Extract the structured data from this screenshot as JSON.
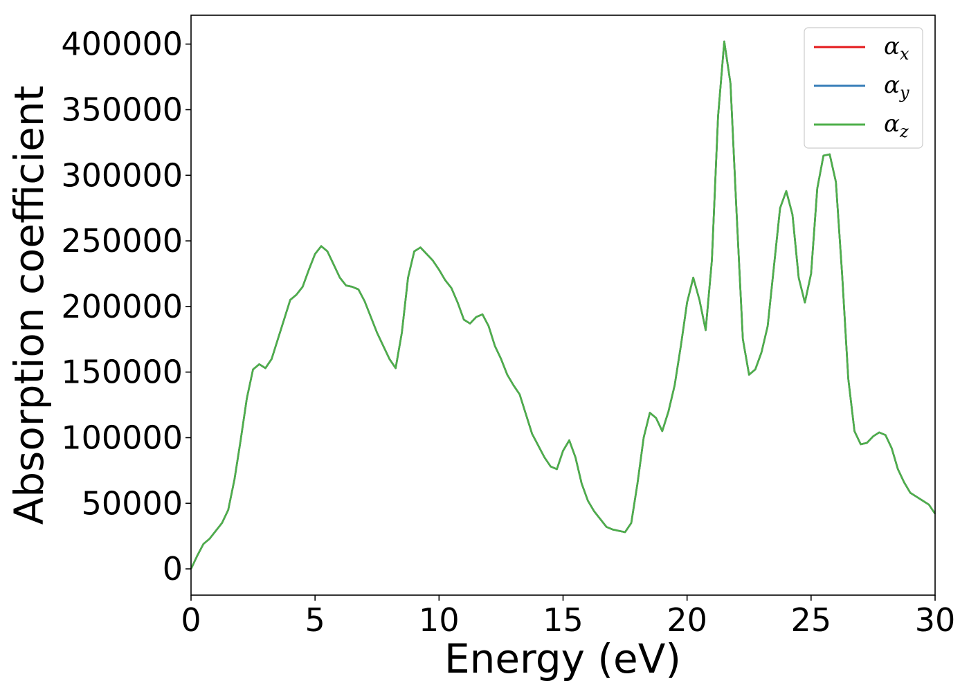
{
  "chart_data": {
    "type": "line",
    "xlabel": "Energy (eV)",
    "ylabel": "Absorption coefficient",
    "xlim": [
      0,
      30
    ],
    "ylim": [
      -20000,
      422000
    ],
    "xticks": [
      0,
      5,
      10,
      15,
      20,
      25,
      30
    ],
    "yticks": [
      0,
      50000,
      100000,
      150000,
      200000,
      250000,
      300000,
      350000,
      400000
    ],
    "grid": false,
    "legend_position": "top-right",
    "x": [
      0,
      0.25,
      0.5,
      0.75,
      1.0,
      1.25,
      1.5,
      1.75,
      2.0,
      2.25,
      2.5,
      2.75,
      3.0,
      3.25,
      3.5,
      3.75,
      4.0,
      4.25,
      4.5,
      4.75,
      5.0,
      5.25,
      5.5,
      5.75,
      6.0,
      6.25,
      6.5,
      6.75,
      7.0,
      7.25,
      7.5,
      7.75,
      8.0,
      8.25,
      8.5,
      8.75,
      9.0,
      9.25,
      9.5,
      9.75,
      10.0,
      10.25,
      10.5,
      10.75,
      11.0,
      11.25,
      11.5,
      11.75,
      12.0,
      12.25,
      12.5,
      12.75,
      13.0,
      13.25,
      13.5,
      13.75,
      14.0,
      14.25,
      14.5,
      14.75,
      15.0,
      15.25,
      15.5,
      15.75,
      16.0,
      16.25,
      16.5,
      16.75,
      17.0,
      17.25,
      17.5,
      17.75,
      18.0,
      18.25,
      18.5,
      18.75,
      19.0,
      19.25,
      19.5,
      19.75,
      20.0,
      20.25,
      20.5,
      20.75,
      21.0,
      21.25,
      21.5,
      21.75,
      22.0,
      22.25,
      22.5,
      22.75,
      23.0,
      23.25,
      23.5,
      23.75,
      24.0,
      24.25,
      24.5,
      24.75,
      25.0,
      25.25,
      25.5,
      25.75,
      26.0,
      26.25,
      26.5,
      26.75,
      27.0,
      27.25,
      27.5,
      27.75,
      28.0,
      28.25,
      28.5,
      28.75,
      29.0,
      29.25,
      29.5,
      29.75,
      30.0
    ],
    "series": [
      {
        "name": "α_x",
        "color": "#e41a1c"
      },
      {
        "name": "α_y",
        "color": "#377eb8"
      },
      {
        "name": "α_z",
        "color": "#4daf4a"
      }
    ],
    "values": [
      0,
      10000,
      19000,
      23000,
      29000,
      35000,
      45000,
      68000,
      98000,
      130000,
      152000,
      156000,
      153000,
      160000,
      175000,
      190000,
      205000,
      209000,
      215000,
      228000,
      240000,
      246000,
      242000,
      232000,
      222000,
      216000,
      215000,
      213000,
      204000,
      192000,
      180000,
      170000,
      160000,
      153000,
      180000,
      222000,
      242000,
      245000,
      240000,
      235000,
      228000,
      220000,
      214000,
      203000,
      190000,
      187000,
      192000,
      194000,
      185000,
      170000,
      160000,
      148000,
      140000,
      133000,
      118000,
      103000,
      94000,
      85000,
      78000,
      76000,
      90000,
      98000,
      85000,
      65000,
      52000,
      44000,
      38000,
      32000,
      30000,
      29000,
      28000,
      35000,
      65000,
      100000,
      119000,
      115000,
      105000,
      120000,
      140000,
      170000,
      203000,
      222000,
      205000,
      182000,
      235000,
      345000,
      402000,
      370000,
      270000,
      175000,
      148000,
      152000,
      165000,
      185000,
      230000,
      275000,
      288000,
      270000,
      222000,
      203000,
      225000,
      290000,
      315000,
      316000,
      295000,
      225000,
      145000,
      105000,
      95000,
      96000,
      101000,
      104000,
      102000,
      92000,
      76000,
      66000,
      58000,
      55000,
      52000,
      49000,
      42000
    ]
  }
}
